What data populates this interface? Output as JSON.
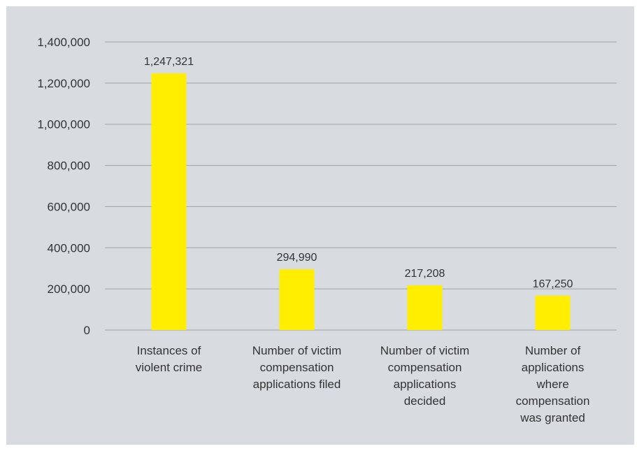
{
  "chart_data": {
    "type": "bar",
    "categories": [
      "Instances of violent crime",
      "Number of victim compensation applications filed",
      "Number of victim compensation applications decided",
      "Number of applications where compensation was granted"
    ],
    "category_lines": [
      [
        "Instances of",
        "violent crime"
      ],
      [
        "Number of victim",
        "compensation",
        "applications filed"
      ],
      [
        "Number of victim",
        "compensation",
        "applications",
        "decided"
      ],
      [
        "Number of",
        "applications",
        "where",
        "compensation",
        "was granted"
      ]
    ],
    "values": [
      1247321,
      294990,
      217208,
      167250
    ],
    "value_labels": [
      "1,247,321",
      "294,990",
      "217,208",
      "167,250"
    ],
    "title": "",
    "xlabel": "",
    "ylabel": "",
    "ylim": [
      0,
      1400000
    ],
    "yticks": [
      0,
      200000,
      400000,
      600000,
      800000,
      1000000,
      1200000,
      1400000
    ],
    "ytick_labels": [
      "0",
      "200,000",
      "400,000",
      "600,000",
      "800,000",
      "1,000,000",
      "1,200,000",
      "1,400,000"
    ],
    "grid": true,
    "legend": "none",
    "colors": {
      "bar": "#ffee00",
      "background": "#d8dce0",
      "grid": "#9ea3a8",
      "text": "#333333"
    }
  }
}
